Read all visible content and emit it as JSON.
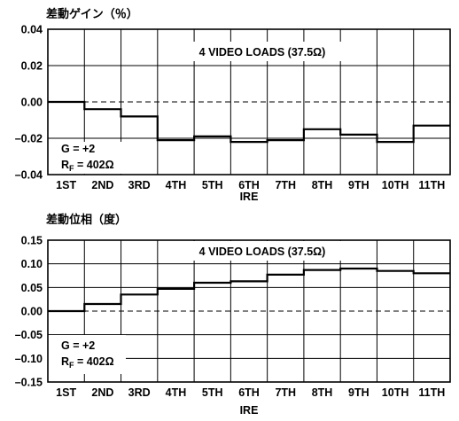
{
  "chart_data": [
    {
      "type": "line",
      "step": true,
      "title": "差動ゲイン（％）",
      "xlabel": "IRE",
      "ylabel": "",
      "categories": [
        "1ST",
        "2ND",
        "3RD",
        "4TH",
        "5TH",
        "6TH",
        "7TH",
        "8TH",
        "9TH",
        "10TH",
        "11TH"
      ],
      "values": [
        0.0,
        -0.004,
        -0.008,
        -0.021,
        -0.019,
        -0.022,
        -0.021,
        -0.015,
        -0.018,
        -0.022,
        -0.013
      ],
      "ylim": [
        -0.04,
        0.04
      ],
      "yticks": [
        "0.04",
        "0.02",
        "0.00",
        "–0.02",
        "–0.04"
      ],
      "ytick_values": [
        0.04,
        0.02,
        0.0,
        -0.02,
        -0.04
      ],
      "grid": true,
      "zero_line": "dashed",
      "annotations": {
        "load": "4 VIDEO LOADS (37.5Ω)",
        "gain": "G = +2",
        "rf_prefix": "R",
        "rf_sub": "F",
        "rf_value": " = 402Ω"
      }
    },
    {
      "type": "line",
      "step": true,
      "title": "差動位相（度）",
      "xlabel": "IRE",
      "ylabel": "",
      "categories": [
        "1ST",
        "2ND",
        "3RD",
        "4TH",
        "5TH",
        "6TH",
        "7TH",
        "8TH",
        "9TH",
        "10TH",
        "11TH"
      ],
      "values": [
        0.0,
        0.015,
        0.035,
        0.047,
        0.06,
        0.063,
        0.077,
        0.087,
        0.09,
        0.085,
        0.08
      ],
      "ylim": [
        -0.15,
        0.15
      ],
      "yticks": [
        "0.15",
        "0.10",
        "0.05",
        "0.00",
        "–0.05",
        "–0.10",
        "–0.15"
      ],
      "ytick_values": [
        0.15,
        0.1,
        0.05,
        0.0,
        -0.05,
        -0.1,
        -0.15
      ],
      "grid": true,
      "zero_line": "dashed",
      "annotations": {
        "load": "4 VIDEO LOADS (37.5Ω)",
        "gain": "G = +2",
        "rf_prefix": "R",
        "rf_sub": "F",
        "rf_value": " = 402Ω"
      }
    }
  ]
}
